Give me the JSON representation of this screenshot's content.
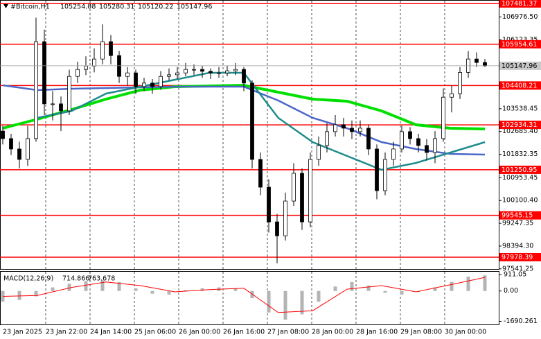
{
  "chart_data": {
    "type": "candlestick",
    "symbol": "#Bitcoin,H1",
    "header_values": [
      105254.08,
      105280.31,
      105120.22,
      105147.96
    ],
    "up_color": "#ffffff",
    "down_color": "#000000",
    "candles": [
      [
        102700,
        102900,
        102200,
        102420
      ],
      [
        102420,
        102600,
        101800,
        102030
      ],
      [
        102030,
        102300,
        101300,
        101640
      ],
      [
        101640,
        102900,
        101400,
        102420
      ],
      [
        102420,
        106950,
        102300,
        106050
      ],
      [
        106050,
        106500,
        103300,
        103720
      ],
      [
        103720,
        104200,
        103100,
        103720
      ],
      [
        103720,
        104000,
        102700,
        103460
      ],
      [
        103460,
        105000,
        103300,
        104750
      ],
      [
        104750,
        105300,
        104500,
        105010
      ],
      [
        105010,
        105500,
        104800,
        105140
      ],
      [
        105140,
        105800,
        104900,
        105400
      ],
      [
        105400,
        106700,
        105200,
        106050
      ],
      [
        106050,
        106300,
        105200,
        105530
      ],
      [
        105530,
        105700,
        104500,
        104750
      ],
      [
        104750,
        105100,
        104400,
        104880
      ],
      [
        104880,
        105000,
        104100,
        104370
      ],
      [
        104370,
        104700,
        104200,
        104500
      ],
      [
        104500,
        104650,
        104100,
        104370
      ],
      [
        104370,
        104950,
        104250,
        104750
      ],
      [
        104750,
        105050,
        104600,
        104810
      ],
      [
        104810,
        105100,
        104650,
        104880
      ],
      [
        104880,
        105250,
        104750,
        105010
      ],
      [
        105010,
        105200,
        104800,
        105010
      ],
      [
        105010,
        105150,
        104700,
        104940
      ],
      [
        104940,
        105050,
        104650,
        104880
      ],
      [
        104880,
        105100,
        104700,
        104880
      ],
      [
        104880,
        105150,
        104750,
        104960
      ],
      [
        104960,
        105250,
        104800,
        105010
      ],
      [
        105010,
        105100,
        104200,
        104500
      ],
      [
        104500,
        104600,
        101300,
        101640
      ],
      [
        101640,
        101900,
        100300,
        100600
      ],
      [
        100600,
        100900,
        98900,
        99300
      ],
      [
        99300,
        99600,
        97750,
        98780
      ],
      [
        98780,
        100400,
        98600,
        100080
      ],
      [
        100080,
        101500,
        99900,
        101120
      ],
      [
        101120,
        101300,
        99000,
        99300
      ],
      [
        99300,
        101900,
        99100,
        101640
      ],
      [
        101640,
        102500,
        101400,
        102160
      ],
      [
        102160,
        103000,
        101900,
        102680
      ],
      [
        102680,
        103300,
        102500,
        102940
      ],
      [
        102940,
        103200,
        102500,
        102810
      ],
      [
        102810,
        103100,
        102400,
        102680
      ],
      [
        102680,
        103100,
        102500,
        102810
      ],
      [
        102810,
        102950,
        101800,
        102030
      ],
      [
        102030,
        102200,
        100150,
        100470
      ],
      [
        100470,
        101900,
        100300,
        101640
      ],
      [
        101640,
        102300,
        101400,
        102030
      ],
      [
        102030,
        102900,
        101900,
        102680
      ],
      [
        102680,
        102850,
        102200,
        102420
      ],
      [
        102420,
        102600,
        101900,
        102160
      ],
      [
        102160,
        102400,
        101600,
        101900
      ],
      [
        101900,
        102700,
        101500,
        102420
      ],
      [
        102420,
        104300,
        102300,
        103970
      ],
      [
        103970,
        104400,
        103400,
        104100
      ],
      [
        104100,
        105100,
        103900,
        104900
      ],
      [
        104900,
        105700,
        104700,
        105400
      ],
      [
        105400,
        105650,
        105100,
        105270
      ],
      [
        105270,
        105400,
        105100,
        105148
      ]
    ],
    "ylim": [
      97536,
      107611
    ],
    "yticks": [
      {
        "value": 106976.5,
        "label": "106976.50"
      },
      106123.35,
      103538.45,
      {
        "value": 102685.4,
        "label": "102685.40"
      },
      101832.35,
      100953.45,
      {
        "value": 100100.4,
        "label": "100100.40"
      },
      99247.35,
      {
        "value": 98394.3,
        "label": "98394.30"
      },
      97541.25
    ],
    "level_color": "#ff0000",
    "levels": [
      107481.37,
      105954.61,
      104408.21,
      102934.31,
      101250.95,
      99545.15,
      97978.39
    ],
    "current_price": 105147.96,
    "moving_averages": [
      {
        "color": "#00e000",
        "values": [
          102807,
          103144,
          103508,
          103897,
          104235,
          104365,
          104391,
          104417,
          104157,
          103897,
          103819,
          103456,
          102936,
          102807,
          102781
        ]
      },
      {
        "color": "#4a66c8",
        "values": [
          104417,
          104235,
          104287,
          104313,
          104339,
          104365,
          104365,
          104365,
          103845,
          103196,
          102807,
          102287,
          102027,
          101846,
          101820
        ]
      },
      {
        "color": "#1e8c8c",
        "values": [
          null,
          103196,
          103456,
          104105,
          104365,
          104624,
          104884,
          104884,
          103196,
          102287,
          101768,
          101249,
          101508,
          101898,
          102287
        ]
      }
    ],
    "xlabels": [
      "23 Jan 2025",
      "23 Jan 22:00",
      "24 Jan 14:00",
      "25 Jan 06:00",
      "26 Jan 00:00",
      "26 Jan 16:00",
      "27 Jan 08:00",
      "28 Jan 00:00",
      "28 Jan 16:00",
      "29 Jan 08:00",
      "30 Jan 00:00"
    ],
    "macd": {
      "title": "MACD(12,26,9)",
      "values": [
        714.866,
        763.678
      ],
      "ylim": [
        -1865,
        1110
      ],
      "yticks": [
        911.05,
        {
          "value": 0,
          "label": "0.00"
        },
        -1690.261
      ],
      "histogram_color": "#b4b4b4",
      "signal_color": "#ff0000",
      "histogram": [
        -595,
        -500,
        -300,
        200,
        400,
        550,
        600,
        500,
        150,
        -150,
        -200,
        50,
        150,
        200,
        150,
        -400,
        -1200,
        -1600,
        -1300,
        -600,
        250,
        500,
        300,
        -100,
        -200,
        -50,
        200,
        500,
        800,
        870
      ],
      "signal": [
        -300,
        -250,
        200,
        500,
        300,
        -50,
        80,
        150,
        -1200,
        -1100,
        100,
        300,
        -50,
        350,
        760
      ]
    }
  }
}
